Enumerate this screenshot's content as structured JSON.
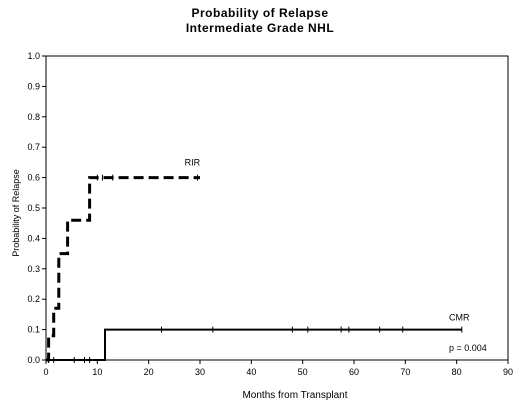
{
  "chart_data": {
    "type": "line",
    "title": "Probability of Relapse",
    "subtitle": "Intermediate Grade NHL",
    "xlabel": "Months from Transplant",
    "ylabel": "Probability of Relapse",
    "xlim": [
      0,
      90
    ],
    "ylim": [
      0,
      1.0
    ],
    "x_ticks": [
      0,
      10,
      20,
      30,
      40,
      50,
      60,
      70,
      80,
      90
    ],
    "y_ticks": [
      "0.0",
      "0.1",
      "0.2",
      "0.3",
      "0.4",
      "0.5",
      "0.6",
      "0.7",
      "0.8",
      "0.9",
      "1.0"
    ],
    "grid": false,
    "series": [
      {
        "name": "RIR",
        "style": "dashed",
        "steps": [
          [
            0,
            0
          ],
          [
            0.5,
            0.0
          ],
          [
            0.5,
            0.08
          ],
          [
            1.5,
            0.08
          ],
          [
            1.5,
            0.17
          ],
          [
            2.5,
            0.17
          ],
          [
            2.5,
            0.35
          ],
          [
            4.2,
            0.35
          ],
          [
            4.2,
            0.46
          ],
          [
            8.5,
            0.46
          ],
          [
            8.5,
            0.6
          ],
          [
            30,
            0.6
          ]
        ],
        "censor_x": [
          10,
          11,
          13,
          29.5
        ]
      },
      {
        "name": "CMR",
        "style": "solid",
        "steps": [
          [
            0,
            0
          ],
          [
            11.5,
            0
          ],
          [
            11.5,
            0.1
          ],
          [
            81,
            0.1
          ]
        ],
        "censor_x": [
          0.5,
          1.5,
          5.5,
          7.5,
          8.5,
          22.5,
          32.5,
          48,
          51,
          57.5,
          59,
          65,
          69.5,
          81
        ]
      }
    ],
    "annotations": [
      {
        "text": "RIR",
        "x": 27,
        "y": 0.64
      },
      {
        "text": "CMR",
        "x": 78.5,
        "y": 0.13
      },
      {
        "text": "p = 0.004",
        "x": 78.5,
        "y": 0.03
      }
    ]
  }
}
